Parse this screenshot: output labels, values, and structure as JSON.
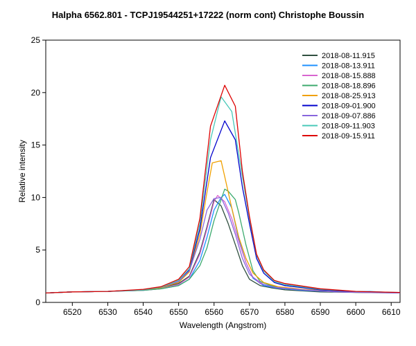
{
  "chart_data": {
    "type": "line",
    "title": "Halpha 6562.801 - TCPJ19544251+17222 (norm cont)   Christophe Boussin",
    "xlabel": "Wavelength (Angstrom)",
    "ylabel": "Relative intensity",
    "xlim": [
      6512.5,
      6612.5
    ],
    "ylim": [
      0,
      25
    ],
    "xticks": [
      6520,
      6530,
      6540,
      6550,
      6560,
      6570,
      6580,
      6590,
      6600,
      6610
    ],
    "yticks": [
      0,
      5,
      10,
      15,
      20,
      25
    ],
    "grid": false,
    "legend_position": "top-right",
    "series": [
      {
        "name": "2018-08-11.915",
        "color": "#2f4f3f",
        "points": [
          [
            6512.5,
            0.9
          ],
          [
            6520,
            1.0
          ],
          [
            6530,
            1.05
          ],
          [
            6540,
            1.2
          ],
          [
            6545,
            1.4
          ],
          [
            6550,
            1.8
          ],
          [
            6553,
            2.5
          ],
          [
            6556,
            4.8
          ],
          [
            6558,
            7.2
          ],
          [
            6560,
            9.8
          ],
          [
            6562,
            9.2
          ],
          [
            6564,
            7.5
          ],
          [
            6566,
            5.5
          ],
          [
            6568,
            3.5
          ],
          [
            6570,
            2.2
          ],
          [
            6573,
            1.6
          ],
          [
            6576,
            1.4
          ],
          [
            6580,
            1.2
          ],
          [
            6590,
            1.0
          ],
          [
            6600,
            0.95
          ],
          [
            6612.5,
            0.9
          ]
        ]
      },
      {
        "name": "2018-08-13.911",
        "color": "#1e90ff",
        "points": [
          [
            6512.5,
            0.9
          ],
          [
            6520,
            1.0
          ],
          [
            6530,
            1.05
          ],
          [
            6540,
            1.15
          ],
          [
            6545,
            1.3
          ],
          [
            6550,
            1.6
          ],
          [
            6553,
            2.2
          ],
          [
            6556,
            4.0
          ],
          [
            6558,
            6.2
          ],
          [
            6560,
            8.8
          ],
          [
            6562,
            10.0
          ],
          [
            6563,
            10.3
          ],
          [
            6565,
            9.0
          ],
          [
            6567,
            6.0
          ],
          [
            6569,
            3.8
          ],
          [
            6571,
            2.3
          ],
          [
            6574,
            1.6
          ],
          [
            6578,
            1.35
          ],
          [
            6585,
            1.15
          ],
          [
            6595,
            1.0
          ],
          [
            6604,
            1.05
          ],
          [
            6612.5,
            0.9
          ]
        ]
      },
      {
        "name": "2018-08-15.888",
        "color": "#d864d0",
        "points": [
          [
            6512.5,
            0.9
          ],
          [
            6520,
            1.0
          ],
          [
            6530,
            1.05
          ],
          [
            6540,
            1.15
          ],
          [
            6545,
            1.3
          ],
          [
            6550,
            1.7
          ],
          [
            6553,
            2.4
          ],
          [
            6556,
            4.6
          ],
          [
            6558,
            7.0
          ],
          [
            6560,
            9.6
          ],
          [
            6561,
            10.2
          ],
          [
            6563,
            9.6
          ],
          [
            6565,
            8.0
          ],
          [
            6567,
            5.8
          ],
          [
            6569,
            3.8
          ],
          [
            6571,
            2.4
          ],
          [
            6574,
            1.7
          ],
          [
            6578,
            1.4
          ],
          [
            6585,
            1.2
          ],
          [
            6595,
            1.0
          ],
          [
            6612.5,
            0.9
          ]
        ]
      },
      {
        "name": "2018-08-18.896",
        "color": "#3caa6e",
        "points": [
          [
            6512.5,
            0.9
          ],
          [
            6520,
            1.0
          ],
          [
            6530,
            1.05
          ],
          [
            6540,
            1.15
          ],
          [
            6545,
            1.3
          ],
          [
            6550,
            1.6
          ],
          [
            6553,
            2.2
          ],
          [
            6556,
            3.5
          ],
          [
            6558,
            5.2
          ],
          [
            6560,
            7.8
          ],
          [
            6562,
            9.8
          ],
          [
            6563,
            10.8
          ],
          [
            6564,
            10.6
          ],
          [
            6566,
            9.8
          ],
          [
            6567,
            8.5
          ],
          [
            6569,
            5.5
          ],
          [
            6571,
            3.0
          ],
          [
            6573,
            2.0
          ],
          [
            6576,
            1.6
          ],
          [
            6580,
            1.35
          ],
          [
            6590,
            1.1
          ],
          [
            6600,
            1.0
          ],
          [
            6612.5,
            0.9
          ]
        ]
      },
      {
        "name": "2018-08-25.913",
        "color": "#f0a000",
        "points": [
          [
            6512.5,
            0.9
          ],
          [
            6520,
            1.0
          ],
          [
            6530,
            1.05
          ],
          [
            6540,
            1.2
          ],
          [
            6545,
            1.4
          ],
          [
            6550,
            1.9
          ],
          [
            6553,
            2.9
          ],
          [
            6556,
            6.5
          ],
          [
            6558,
            10.5
          ],
          [
            6559.5,
            13.3
          ],
          [
            6562,
            13.5
          ],
          [
            6563,
            12.0
          ],
          [
            6565,
            9.0
          ],
          [
            6567,
            6.2
          ],
          [
            6569,
            4.2
          ],
          [
            6571,
            2.8
          ],
          [
            6574,
            1.9
          ],
          [
            6578,
            1.5
          ],
          [
            6585,
            1.25
          ],
          [
            6595,
            1.05
          ],
          [
            6612.5,
            0.9
          ]
        ]
      },
      {
        "name": "2018-09-01.900",
        "color": "#0000cc",
        "points": [
          [
            6512.5,
            0.9
          ],
          [
            6520,
            1.0
          ],
          [
            6530,
            1.05
          ],
          [
            6540,
            1.2
          ],
          [
            6545,
            1.45
          ],
          [
            6550,
            2.0
          ],
          [
            6553,
            3.1
          ],
          [
            6556,
            7.0
          ],
          [
            6559,
            13.8
          ],
          [
            6563,
            17.3
          ],
          [
            6566,
            15.5
          ],
          [
            6568,
            11.0
          ],
          [
            6570,
            7.5
          ],
          [
            6572,
            4.2
          ],
          [
            6574,
            2.8
          ],
          [
            6577,
            1.9
          ],
          [
            6580,
            1.6
          ],
          [
            6590,
            1.2
          ],
          [
            6600,
            1.0
          ],
          [
            6612.5,
            0.9
          ]
        ]
      },
      {
        "name": "2018-09-07.886",
        "color": "#8866dd",
        "points": [
          [
            6512.5,
            0.9
          ],
          [
            6520,
            1.0
          ],
          [
            6530,
            1.05
          ],
          [
            6540,
            1.2
          ],
          [
            6545,
            1.45
          ],
          [
            6550,
            2.0
          ],
          [
            6553,
            3.0
          ],
          [
            6556,
            6.0
          ],
          [
            6558,
            8.8
          ],
          [
            6560,
            9.9
          ],
          [
            6562,
            10.0
          ],
          [
            6564,
            8.5
          ],
          [
            6566,
            6.5
          ],
          [
            6568,
            4.2
          ],
          [
            6570,
            2.7
          ],
          [
            6573,
            1.8
          ],
          [
            6577,
            1.45
          ],
          [
            6585,
            1.2
          ],
          [
            6595,
            1.0
          ],
          [
            6612.5,
            0.9
          ]
        ]
      },
      {
        "name": "2018-09-11.903",
        "color": "#48c8b8",
        "points": [
          [
            6512.5,
            0.9
          ],
          [
            6520,
            1.0
          ],
          [
            6530,
            1.05
          ],
          [
            6540,
            1.2
          ],
          [
            6545,
            1.45
          ],
          [
            6550,
            2.1
          ],
          [
            6553,
            3.2
          ],
          [
            6556,
            7.5
          ],
          [
            6559,
            15.5
          ],
          [
            6562,
            19.6
          ],
          [
            6565,
            18.2
          ],
          [
            6568,
            12.0
          ],
          [
            6570,
            8.0
          ],
          [
            6572,
            4.5
          ],
          [
            6574,
            3.0
          ],
          [
            6577,
            2.0
          ],
          [
            6580,
            1.7
          ],
          [
            6590,
            1.25
          ],
          [
            6600,
            1.05
          ],
          [
            6612.5,
            0.95
          ]
        ]
      },
      {
        "name": "2018-09-15.911",
        "color": "#dd0000",
        "points": [
          [
            6512.5,
            0.9
          ],
          [
            6520,
            1.0
          ],
          [
            6530,
            1.05
          ],
          [
            6540,
            1.25
          ],
          [
            6545,
            1.5
          ],
          [
            6550,
            2.2
          ],
          [
            6553,
            3.4
          ],
          [
            6556,
            8.0
          ],
          [
            6559,
            16.8
          ],
          [
            6563,
            20.7
          ],
          [
            6566,
            18.7
          ],
          [
            6568,
            12.5
          ],
          [
            6570,
            8.2
          ],
          [
            6572,
            4.6
          ],
          [
            6574,
            3.1
          ],
          [
            6577,
            2.1
          ],
          [
            6580,
            1.8
          ],
          [
            6590,
            1.3
          ],
          [
            6600,
            1.05
          ],
          [
            6612.5,
            0.95
          ]
        ]
      }
    ]
  }
}
